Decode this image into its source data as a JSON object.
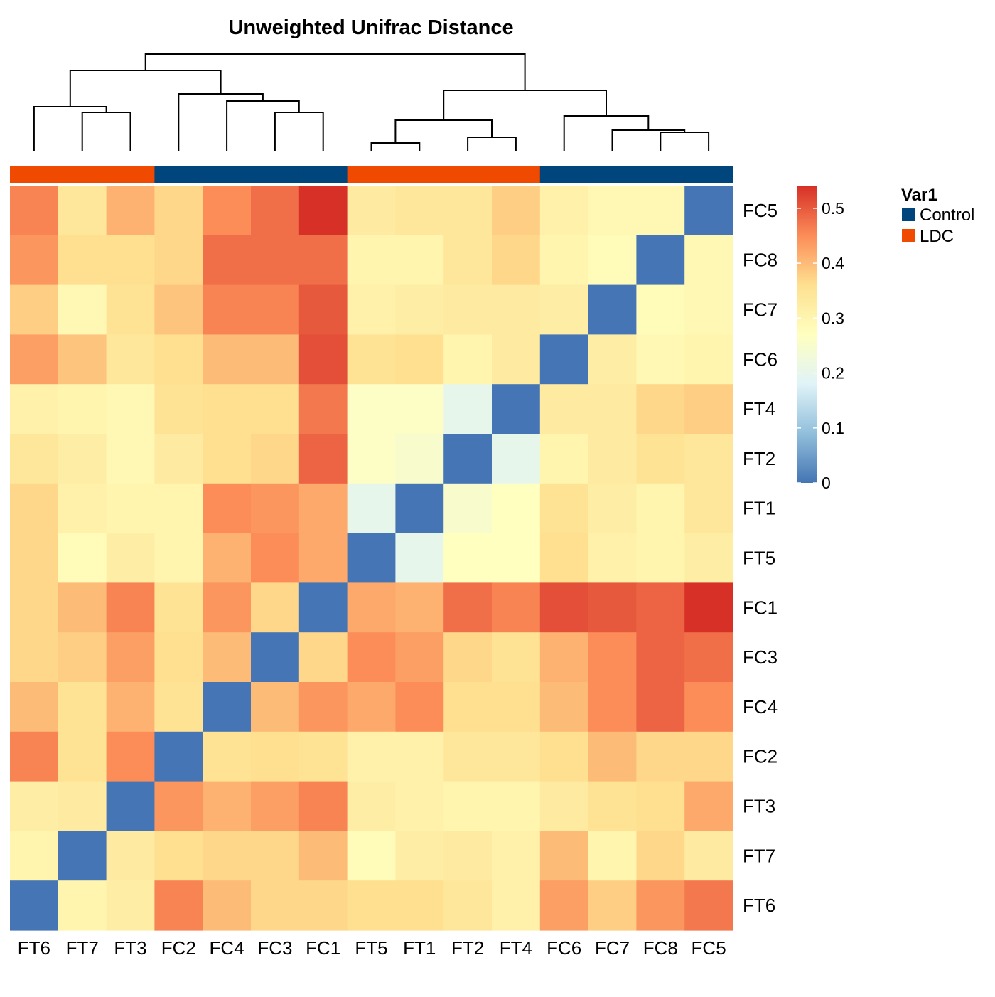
{
  "chart_data": {
    "type": "heatmap",
    "title": "Unweighted Unifrac Distance",
    "x_labels": [
      "FT6",
      "FT7",
      "FT3",
      "FC2",
      "FC4",
      "FC3",
      "FC1",
      "FT5",
      "FT1",
      "FT2",
      "FT4",
      "FC6",
      "FC7",
      "FC8",
      "FC5"
    ],
    "y_labels": [
      "FC5",
      "FC8",
      "FC7",
      "FC6",
      "FT4",
      "FT2",
      "FT1",
      "FT5",
      "FC1",
      "FC3",
      "FC4",
      "FC2",
      "FT3",
      "FT7",
      "FT6"
    ],
    "values": [
      [
        0.46,
        0.34,
        0.41,
        0.37,
        0.45,
        0.48,
        0.54,
        0.33,
        0.34,
        0.34,
        0.38,
        0.31,
        0.29,
        0.29,
        0.0
      ],
      [
        0.44,
        0.36,
        0.36,
        0.37,
        0.48,
        0.48,
        0.48,
        0.3,
        0.3,
        0.34,
        0.37,
        0.3,
        0.28,
        0.0,
        0.29
      ],
      [
        0.38,
        0.29,
        0.35,
        0.39,
        0.46,
        0.46,
        0.5,
        0.31,
        0.32,
        0.33,
        0.33,
        0.32,
        0.0,
        0.28,
        0.29
      ],
      [
        0.43,
        0.39,
        0.34,
        0.36,
        0.4,
        0.4,
        0.51,
        0.35,
        0.36,
        0.3,
        0.33,
        0.0,
        0.32,
        0.29,
        0.3
      ],
      [
        0.31,
        0.3,
        0.29,
        0.35,
        0.36,
        0.36,
        0.47,
        0.26,
        0.26,
        0.2,
        0.0,
        0.33,
        0.33,
        0.37,
        0.38
      ],
      [
        0.34,
        0.32,
        0.29,
        0.33,
        0.36,
        0.37,
        0.49,
        0.26,
        0.25,
        0.0,
        0.2,
        0.3,
        0.33,
        0.35,
        0.34
      ],
      [
        0.37,
        0.31,
        0.3,
        0.3,
        0.45,
        0.44,
        0.42,
        0.2,
        0.0,
        0.25,
        0.27,
        0.35,
        0.32,
        0.3,
        0.34
      ],
      [
        0.37,
        0.28,
        0.32,
        0.3,
        0.41,
        0.45,
        0.42,
        0.0,
        0.2,
        0.27,
        0.27,
        0.36,
        0.31,
        0.3,
        0.32
      ],
      [
        0.37,
        0.4,
        0.46,
        0.35,
        0.44,
        0.37,
        0.0,
        0.42,
        0.41,
        0.48,
        0.46,
        0.51,
        0.5,
        0.49,
        0.54
      ],
      [
        0.37,
        0.38,
        0.43,
        0.36,
        0.4,
        0.0,
        0.37,
        0.45,
        0.43,
        0.37,
        0.35,
        0.41,
        0.45,
        0.49,
        0.48
      ],
      [
        0.4,
        0.35,
        0.41,
        0.35,
        0.0,
        0.4,
        0.44,
        0.42,
        0.45,
        0.36,
        0.36,
        0.4,
        0.45,
        0.49,
        0.45
      ],
      [
        0.46,
        0.35,
        0.45,
        0.0,
        0.35,
        0.36,
        0.35,
        0.31,
        0.31,
        0.34,
        0.34,
        0.36,
        0.4,
        0.37,
        0.37
      ],
      [
        0.32,
        0.33,
        0.0,
        0.44,
        0.41,
        0.43,
        0.46,
        0.32,
        0.31,
        0.3,
        0.3,
        0.33,
        0.35,
        0.36,
        0.42
      ],
      [
        0.3,
        0.0,
        0.33,
        0.36,
        0.37,
        0.37,
        0.4,
        0.28,
        0.32,
        0.33,
        0.31,
        0.4,
        0.3,
        0.37,
        0.33
      ],
      [
        0.0,
        0.3,
        0.32,
        0.46,
        0.4,
        0.37,
        0.37,
        0.36,
        0.36,
        0.34,
        0.31,
        0.43,
        0.38,
        0.44,
        0.47
      ]
    ],
    "annotation": {
      "title": "Var1",
      "categories": [
        {
          "name": "Control",
          "color": "#00457C"
        },
        {
          "name": "LDC",
          "color": "#F04A00"
        }
      ],
      "column_groups": [
        "LDC",
        "LDC",
        "LDC",
        "Control",
        "Control",
        "Control",
        "Control",
        "LDC",
        "LDC",
        "LDC",
        "LDC",
        "Control",
        "Control",
        "Control",
        "Control"
      ]
    },
    "colorbar": {
      "range": [
        0,
        0.54
      ],
      "ticks": [
        "0",
        "0.1",
        "0.2",
        "0.3",
        "0.4",
        "0.5"
      ],
      "tick_values": [
        0,
        0.1,
        0.2,
        0.3,
        0.4,
        0.5
      ],
      "colors": [
        "#4575B4",
        "#91BFDB",
        "#E0F3F8",
        "#FFFFBF",
        "#FEE090",
        "#FC8D59",
        "#D73027"
      ]
    },
    "dendrogram": {
      "leaf_order": [
        "FT6",
        "FT7",
        "FT3",
        "FC2",
        "FC4",
        "FC3",
        "FC1",
        "FT5",
        "FT1",
        "FT2",
        "FT4",
        "FC6",
        "FC7",
        "FC8",
        "FC5"
      ]
    }
  }
}
